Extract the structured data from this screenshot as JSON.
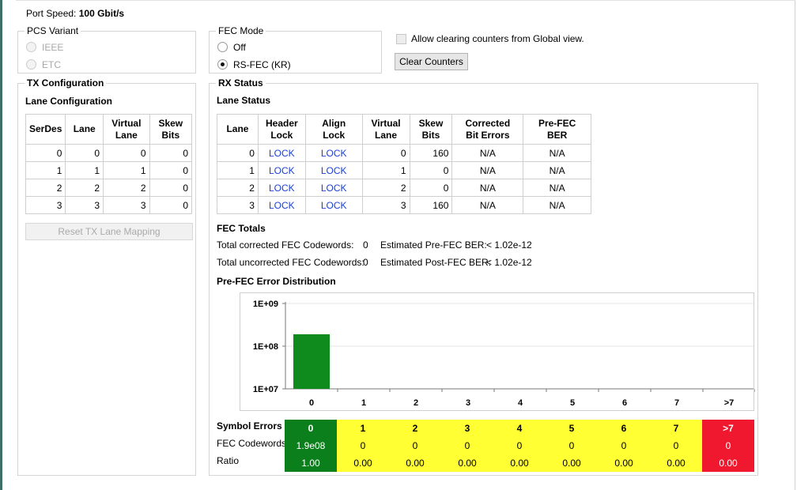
{
  "port_speed": {
    "label": "Port Speed:",
    "value": "100 Gbit/s"
  },
  "pcs_variant": {
    "title": "PCS Variant",
    "options": [
      "IEEE",
      "ETC"
    ],
    "selected": null
  },
  "fec_mode": {
    "title": "FEC Mode",
    "options": [
      "Off",
      "RS-FEC (KR)"
    ],
    "selected": "RS-FEC (KR)"
  },
  "allow_clearing": {
    "label": "Allow clearing counters from Global view.",
    "checked": false
  },
  "clear_counters": "Clear Counters",
  "tx": {
    "title": "TX Configuration",
    "lane_config_title": "Lane Configuration",
    "headers": [
      [
        "SerDes"
      ],
      [
        "Lane"
      ],
      [
        "Virtual",
        "Lane"
      ],
      [
        "Skew",
        "Bits"
      ]
    ],
    "rows": [
      [
        "0",
        "0",
        "0",
        "0"
      ],
      [
        "1",
        "1",
        "1",
        "0"
      ],
      [
        "2",
        "2",
        "2",
        "0"
      ],
      [
        "3",
        "3",
        "3",
        "0"
      ]
    ],
    "reset_button": "Reset TX Lane Mapping"
  },
  "rx": {
    "title": "RX Status",
    "lane_status_title": "Lane Status",
    "headers": [
      [
        "Lane"
      ],
      [
        "Header",
        "Lock"
      ],
      [
        "Align",
        "Lock"
      ],
      [
        "Virtual",
        "Lane"
      ],
      [
        "Skew",
        "Bits"
      ],
      [
        "Corrected",
        "Bit Errors"
      ],
      [
        "Pre-FEC",
        "BER"
      ]
    ],
    "rows": [
      [
        "0",
        "LOCK",
        "LOCK",
        "0",
        "160",
        "N/A",
        "N/A"
      ],
      [
        "1",
        "LOCK",
        "LOCK",
        "1",
        "0",
        "N/A",
        "N/A"
      ],
      [
        "2",
        "LOCK",
        "LOCK",
        "2",
        "0",
        "N/A",
        "N/A"
      ],
      [
        "3",
        "LOCK",
        "LOCK",
        "3",
        "160",
        "N/A",
        "N/A"
      ]
    ]
  },
  "fec_totals": {
    "title": "FEC Totals",
    "corrected_label": "Total corrected FEC Codewords:",
    "corrected_value": "0",
    "uncorrected_label": "Total uncorrected FEC Codewords:",
    "uncorrected_value": "0",
    "pre_ber_label": "Estimated Pre-FEC BER:",
    "pre_ber_value": "< 1.02e-12",
    "post_ber_label": "Estimated Post-FEC BER:",
    "post_ber_value": "< 1.02e-12"
  },
  "dist_title": "Pre-FEC Error Distribution",
  "chart_data": {
    "type": "bar",
    "title": "",
    "xlabel": "",
    "ylabel": "",
    "y_scale": "log",
    "ylim": [
      10000000,
      1000000000
    ],
    "y_ticks": [
      "1E+07",
      "1E+08",
      "1E+09"
    ],
    "y_tick_values": [
      10000000,
      100000000,
      1000000000
    ],
    "categories": [
      "0",
      "1",
      "2",
      "3",
      "4",
      "5",
      "6",
      "7",
      ">7"
    ],
    "values": [
      190000000,
      0,
      0,
      0,
      0,
      0,
      0,
      0,
      0
    ],
    "bar_color": "#0f8a1d",
    "grid": true
  },
  "summary": {
    "row_labels": [
      "Symbol Errors",
      "FEC Codewords",
      "Ratio"
    ],
    "symbol_errors": [
      "0",
      "1",
      "2",
      "3",
      "4",
      "5",
      "6",
      "7",
      ">7"
    ],
    "fec_codewords": [
      "1.9e08",
      "0",
      "0",
      "0",
      "0",
      "0",
      "0",
      "0",
      "0"
    ],
    "ratio": [
      "1.00",
      "0.00",
      "0.00",
      "0.00",
      "0.00",
      "0.00",
      "0.00",
      "0.00",
      "0.00"
    ],
    "colors": [
      "#0b7f1b",
      "#ffff33",
      "#ffff33",
      "#ffff33",
      "#ffff33",
      "#ffff33",
      "#ffff33",
      "#ffff33",
      "#f0182e"
    ]
  }
}
